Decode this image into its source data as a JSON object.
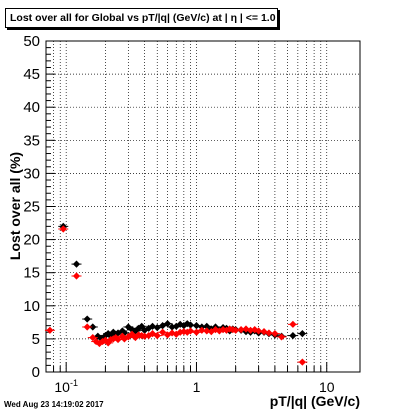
{
  "title": "Lost over all for Global vs pT/|q| (GeV/c) at |  η | <= 1.0",
  "timestamp": "Wed Aug 23 14:19:02 2017",
  "chart_data": {
    "type": "scatter",
    "title": "Lost over all for Global vs pT/|q| (GeV/c) at |  η | <= 1.0",
    "xlabel": "pT/|q| (GeV/c)",
    "ylabel": "Lost over all (%)",
    "xscale": "log",
    "xlim": [
      0.07,
      18
    ],
    "ylim": [
      0,
      50
    ],
    "grid": true,
    "y_ticks": [
      0,
      5,
      10,
      15,
      20,
      25,
      30,
      35,
      40,
      45,
      50
    ],
    "x_tick_labels": [
      {
        "value": 0.1,
        "label": "10",
        "exp": "-1"
      },
      {
        "value": 1,
        "label": "1",
        "exp": ""
      },
      {
        "value": 10,
        "label": "10",
        "exp": ""
      }
    ],
    "series": [
      {
        "color": "#000000",
        "x": [
          0.095,
          0.12,
          0.145,
          0.16,
          0.175,
          0.185,
          0.2,
          0.21,
          0.22,
          0.23,
          0.24,
          0.25,
          0.27,
          0.28,
          0.3,
          0.32,
          0.34,
          0.36,
          0.38,
          0.4,
          0.43,
          0.46,
          0.5,
          0.55,
          0.6,
          0.65,
          0.7,
          0.75,
          0.8,
          0.85,
          0.9,
          1.0,
          1.1,
          1.2,
          1.3,
          1.4,
          1.5,
          1.6,
          1.7,
          1.8,
          1.9,
          2.0,
          2.2,
          2.4,
          2.6,
          2.8,
          3.0,
          3.3,
          3.6,
          4.0,
          4.5,
          5.5,
          6.5
        ],
        "y": [
          22.0,
          16.3,
          8.0,
          6.8,
          5.4,
          5.1,
          5.5,
          5.8,
          5.4,
          6.0,
          5.7,
          5.9,
          6.2,
          5.9,
          6.8,
          6.4,
          6.2,
          6.6,
          6.9,
          6.3,
          6.6,
          6.9,
          6.7,
          7.0,
          7.3,
          6.8,
          6.9,
          7.2,
          7.0,
          7.3,
          7.1,
          7.0,
          6.8,
          6.9,
          6.5,
          6.8,
          6.3,
          6.7,
          6.6,
          6.2,
          6.5,
          6.4,
          6.3,
          6.1,
          6.0,
          6.2,
          5.9,
          6.0,
          5.8,
          5.6,
          5.4,
          5.5,
          5.8
        ]
      },
      {
        "color": "#ff0000",
        "x": [
          0.075,
          0.095,
          0.12,
          0.145,
          0.16,
          0.17,
          0.18,
          0.19,
          0.2,
          0.21,
          0.22,
          0.23,
          0.24,
          0.25,
          0.27,
          0.28,
          0.3,
          0.32,
          0.34,
          0.36,
          0.38,
          0.4,
          0.43,
          0.46,
          0.5,
          0.55,
          0.6,
          0.65,
          0.7,
          0.75,
          0.8,
          0.85,
          0.9,
          1.0,
          1.1,
          1.2,
          1.3,
          1.4,
          1.5,
          1.6,
          1.7,
          1.8,
          1.9,
          2.0,
          2.2,
          2.4,
          2.6,
          2.8,
          3.0,
          3.3,
          3.6,
          4.0,
          4.5,
          5.5,
          6.5
        ],
        "y": [
          6.3,
          21.6,
          14.5,
          6.8,
          5.2,
          4.6,
          4.3,
          4.6,
          4.8,
          4.4,
          4.9,
          5.0,
          5.2,
          4.9,
          5.4,
          5.0,
          5.3,
          5.7,
          5.2,
          5.6,
          5.5,
          5.4,
          5.5,
          5.8,
          5.5,
          6.0,
          5.6,
          5.9,
          5.7,
          6.0,
          6.1,
          6.0,
          6.2,
          6.0,
          6.3,
          6.2,
          6.1,
          6.4,
          6.2,
          6.4,
          6.3,
          6.5,
          6.4,
          6.3,
          6.4,
          6.5,
          6.3,
          6.4,
          6.2,
          6.1,
          5.9,
          5.8,
          5.3,
          7.2,
          1.5
        ]
      }
    ]
  }
}
